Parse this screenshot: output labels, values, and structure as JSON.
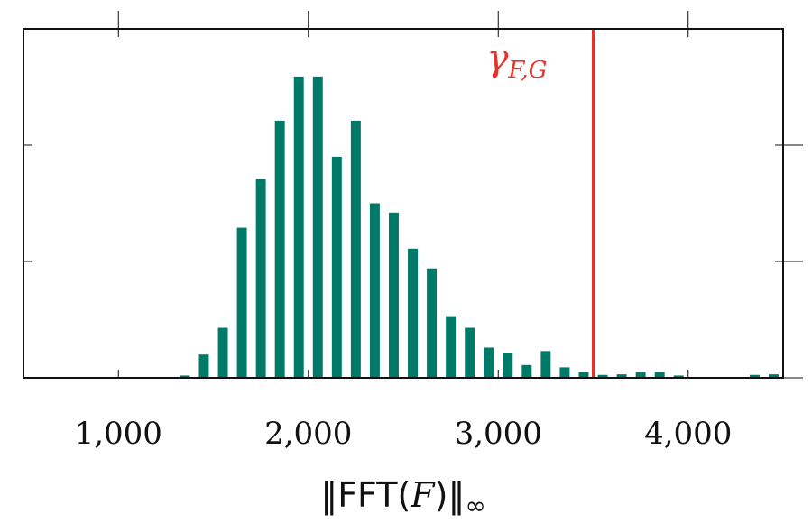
{
  "chart_data": {
    "type": "bar",
    "x": [
      1350,
      1450,
      1550,
      1650,
      1750,
      1850,
      1950,
      2050,
      2150,
      2250,
      2350,
      2450,
      2550,
      2650,
      2750,
      2850,
      2950,
      3050,
      3150,
      3250,
      3350,
      3450,
      3550,
      3650,
      3750,
      3850,
      3950,
      4350,
      4450
    ],
    "values": [
      0.2,
      2.0,
      4.3,
      12.9,
      17.1,
      22.1,
      25.9,
      25.9,
      19.0,
      22.1,
      15.0,
      14.2,
      11.1,
      9.4,
      5.3,
      4.3,
      2.6,
      2.1,
      1.1,
      2.3,
      0.9,
      0.5,
      0.25,
      0.3,
      0.5,
      0.5,
      0.2,
      0.25,
      0.3
    ],
    "xlim": [
      500,
      4500
    ],
    "ylim": [
      0,
      30
    ],
    "xticks": [
      1000,
      2000,
      3000,
      4000
    ],
    "xtick_labels": [
      "1,000",
      "2,000",
      "3,000",
      "4,000"
    ],
    "yticks": [
      0,
      10,
      20
    ],
    "xlabel_prefix": "‖FFT(",
    "xlabel_var": "F",
    "xlabel_suffix": ")‖",
    "xlabel_sub": "∞",
    "bar_color": "#007a68",
    "annotation": {
      "x": 3500,
      "symbol": "γ",
      "subscript": "F,G",
      "color": "#e8322b"
    },
    "grid": false
  }
}
